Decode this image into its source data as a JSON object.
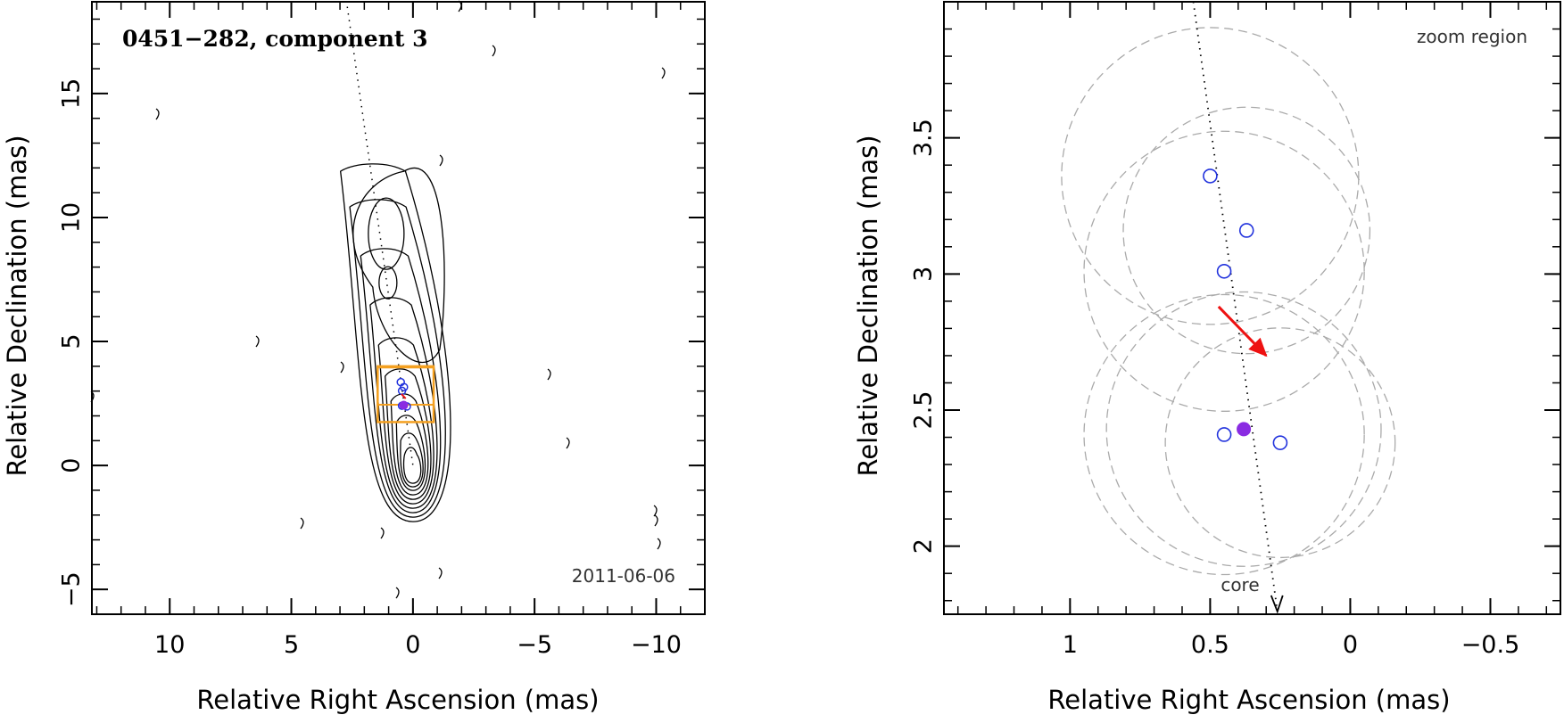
{
  "chart_data": [
    {
      "id": "overview",
      "type": "contour",
      "title": "0451−282, component 3",
      "date_label": "2011-06-06",
      "xlabel": "Relative Right Ascension (mas)",
      "ylabel": "Relative Declination (mas)",
      "xlim": [
        13.2,
        -12.0
      ],
      "ylim": [
        -6.0,
        18.7
      ],
      "xticks": [
        10,
        5,
        0,
        -5,
        -10
      ],
      "xtick_labels": [
        "10",
        "5",
        "0",
        "−5",
        "−10"
      ],
      "yticks": [
        -5,
        0,
        5,
        10,
        15
      ],
      "ytick_labels": [
        "−5",
        "0",
        "5",
        "10",
        "15"
      ],
      "contour_center": [
        0.0,
        0.0
      ],
      "jet_axis": {
        "from": [
          2.7,
          18.5
        ],
        "to": [
          0.0,
          0.0
        ]
      },
      "zoom_box_outer": {
        "x": [
          1.45,
          -0.85
        ],
        "y": [
          1.75,
          4.0
        ]
      },
      "zoom_box_inner": {
        "x": [
          1.45,
          -0.85
        ],
        "y": [
          2.45,
          3.95
        ]
      },
      "fit_points": [
        {
          "x": 0.5,
          "y": 3.36
        },
        {
          "x": 0.37,
          "y": 3.16
        },
        {
          "x": 0.45,
          "y": 3.01
        },
        {
          "x": 0.45,
          "y": 2.41
        },
        {
          "x": 0.25,
          "y": 2.38
        }
      ],
      "mean_point": {
        "x": 0.38,
        "y": 2.43
      },
      "motion_vector": {
        "from": [
          0.47,
          2.88
        ],
        "to": [
          0.3,
          2.7
        ]
      }
    },
    {
      "id": "zoom",
      "type": "scatter",
      "annotation": "zoom region",
      "core_label": "core",
      "xlabel": "Relative Right Ascension (mas)",
      "ylabel": "Relative Declination (mas)",
      "xlim": [
        1.45,
        -0.75
      ],
      "ylim": [
        1.75,
        4.0
      ],
      "xticks": [
        1,
        0.5,
        0,
        -0.5
      ],
      "xtick_labels": [
        "1",
        "0.5",
        "0",
        "−0.5"
      ],
      "yticks": [
        2,
        2.5,
        3,
        3.5
      ],
      "ytick_labels": [
        "2",
        "2.5",
        "3",
        "3.5"
      ],
      "fit_points": [
        {
          "x": 0.5,
          "y": 3.36
        },
        {
          "x": 0.37,
          "y": 3.16
        },
        {
          "x": 0.45,
          "y": 3.01
        },
        {
          "x": 0.45,
          "y": 2.41
        },
        {
          "x": 0.25,
          "y": 2.38
        }
      ],
      "mean_point": {
        "x": 0.38,
        "y": 2.43
      },
      "error_circles": [
        {
          "x": 0.5,
          "y": 3.36,
          "r": 0.53
        },
        {
          "x": 0.37,
          "y": 3.16,
          "r": 0.44
        },
        {
          "x": 0.45,
          "y": 3.01,
          "r": 0.5
        },
        {
          "x": 0.45,
          "y": 2.41,
          "r": 0.5
        },
        {
          "x": 0.25,
          "y": 2.38,
          "r": 0.41
        },
        {
          "x": 0.38,
          "y": 2.43,
          "r": 0.49
        }
      ],
      "jet_axis": {
        "from": [
          0.56,
          4.0
        ],
        "to": [
          0.26,
          1.76
        ]
      },
      "motion_vector": {
        "from": [
          0.47,
          2.88
        ],
        "to": [
          0.3,
          2.7
        ]
      },
      "colors": {
        "fit_points": "#2233dd",
        "mean_point": "#8a2be2",
        "vector": "#ee1111",
        "circles": "#aaaaaa",
        "zoom_box": "#f4a020"
      }
    }
  ]
}
